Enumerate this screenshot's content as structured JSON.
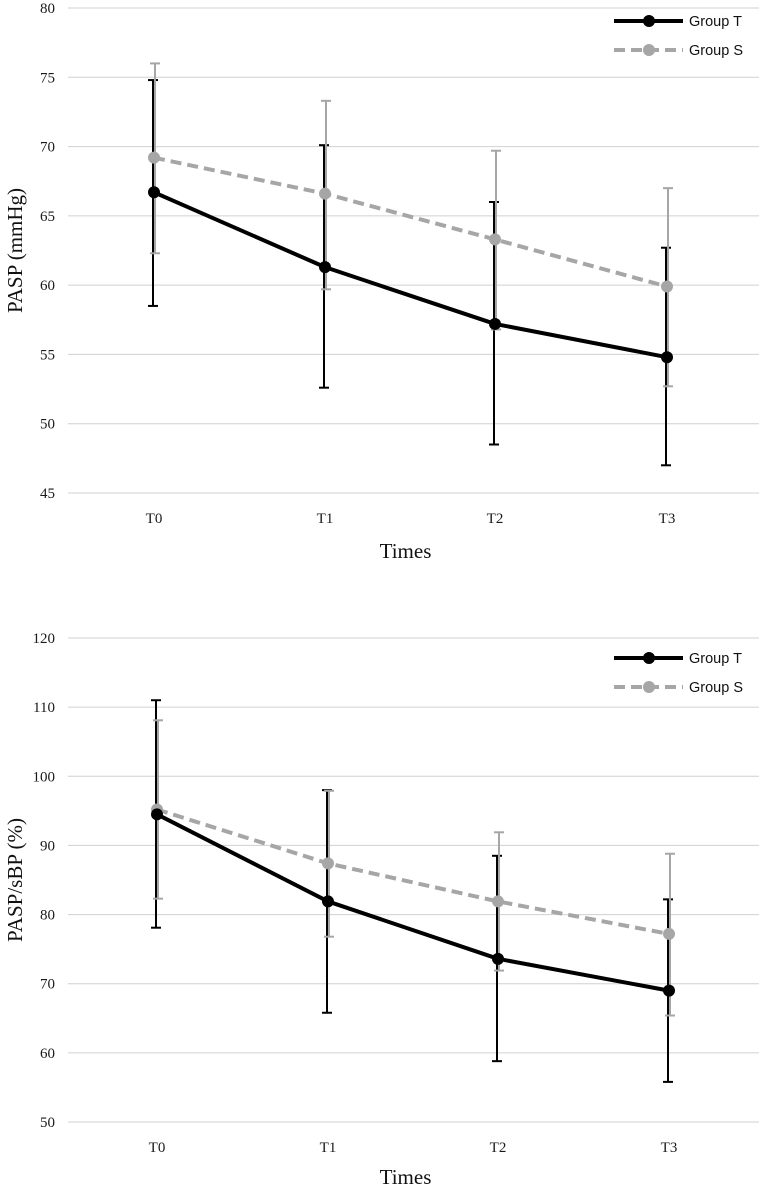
{
  "chart_data": [
    {
      "type": "line",
      "title": "",
      "xlabel": "Times",
      "ylabel": "PASP (mmHg)",
      "categories": [
        "T0",
        "T1",
        "T2",
        "T3"
      ],
      "ylim": [
        45,
        80
      ],
      "yticks": [
        45,
        50,
        55,
        60,
        65,
        70,
        75,
        80
      ],
      "grid": true,
      "legend": "top-right",
      "series": [
        {
          "name": "Group T",
          "color": "#000000",
          "dash": "solid",
          "values": [
            66.7,
            61.3,
            57.2,
            54.8
          ],
          "err_low": [
            58.5,
            52.6,
            48.5,
            47.0
          ],
          "err_high": [
            74.8,
            70.1,
            66.0,
            62.7
          ]
        },
        {
          "name": "Group S",
          "color": "#a6a6a6",
          "dash": "dashed",
          "values": [
            69.2,
            66.6,
            63.3,
            59.9
          ],
          "err_low": [
            62.3,
            59.7,
            56.8,
            52.7
          ],
          "err_high": [
            76.0,
            73.3,
            69.7,
            67.0
          ]
        }
      ]
    },
    {
      "type": "line",
      "title": "",
      "xlabel": "Times",
      "ylabel": "PASP/sBP (%)",
      "categories": [
        "T0",
        "T1",
        "T2",
        "T3"
      ],
      "ylim": [
        50,
        120
      ],
      "yticks": [
        50,
        60,
        70,
        80,
        90,
        100,
        110,
        120
      ],
      "grid": true,
      "legend": "top-right",
      "series": [
        {
          "name": "Group T",
          "color": "#000000",
          "dash": "solid",
          "values": [
            94.5,
            81.9,
            73.6,
            69.0
          ],
          "err_low": [
            78.1,
            65.8,
            58.8,
            55.8
          ],
          "err_high": [
            111.0,
            98.0,
            88.5,
            82.2
          ]
        },
        {
          "name": "Group S",
          "color": "#a6a6a6",
          "dash": "dashed",
          "values": [
            95.2,
            87.4,
            81.9,
            77.2
          ],
          "err_low": [
            82.3,
            76.8,
            71.9,
            65.4
          ],
          "err_high": [
            108.1,
            97.9,
            91.9,
            88.8
          ]
        }
      ]
    }
  ]
}
